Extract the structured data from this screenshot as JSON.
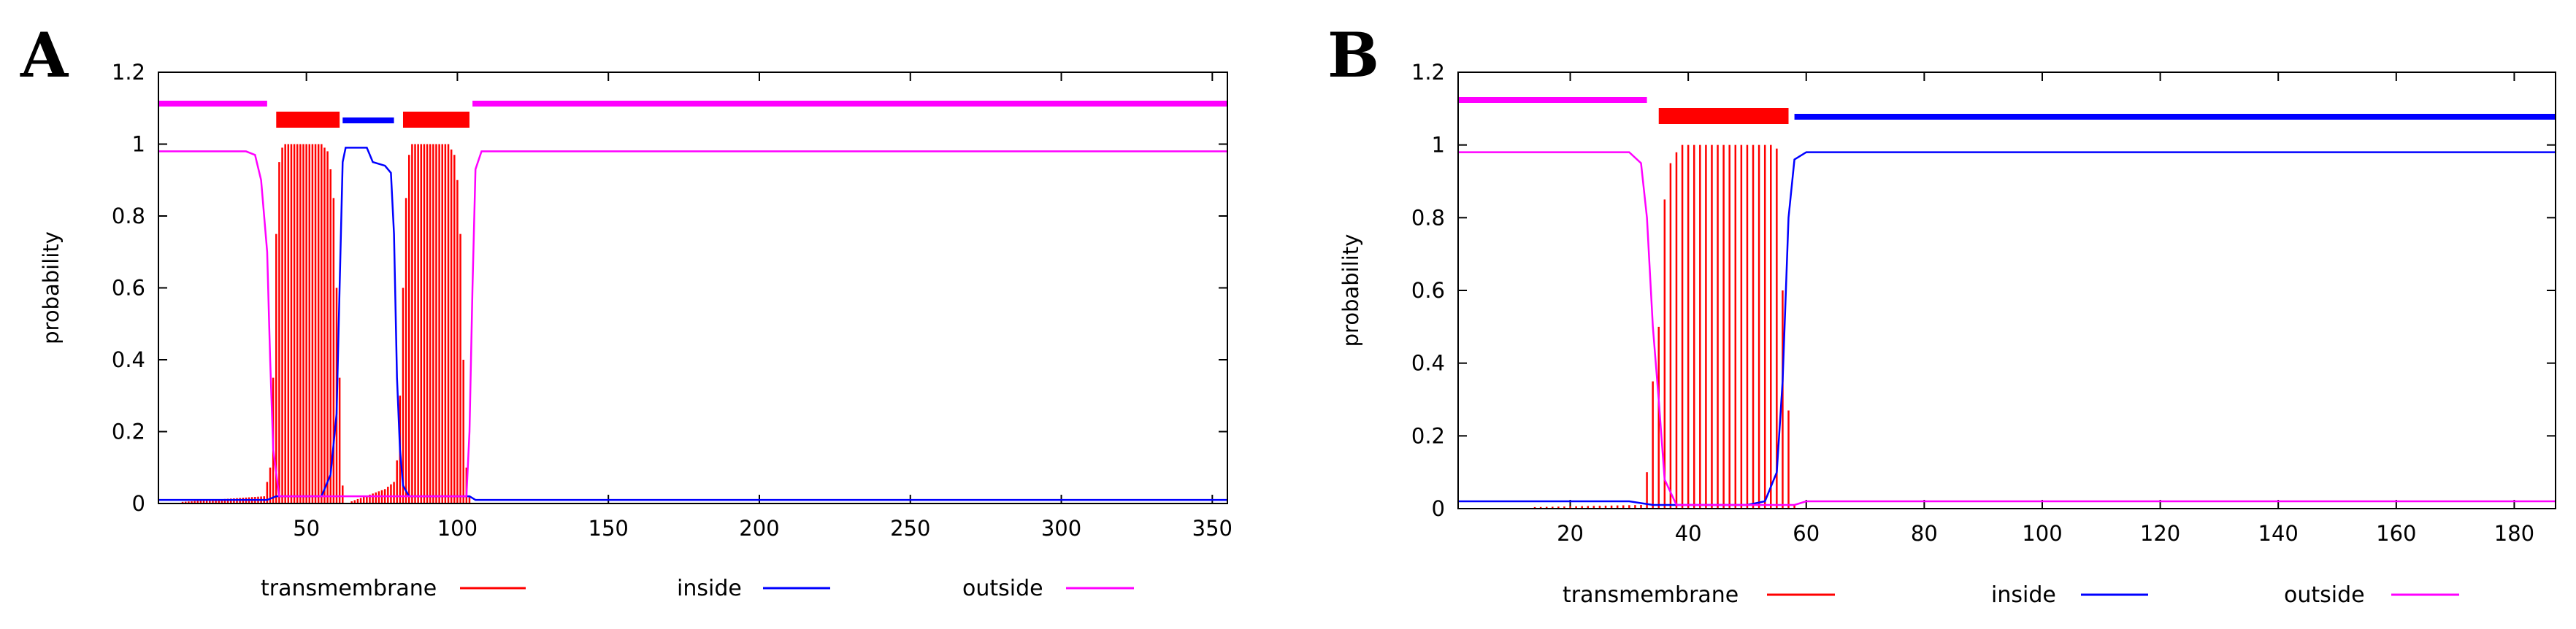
{
  "chart_data": [
    {
      "type": "line",
      "panel_label": "A",
      "ylabel": "probability",
      "xlim": [
        1,
        355
      ],
      "ylim": [
        0,
        1.2
      ],
      "x_ticks": [
        "50",
        "100",
        "150",
        "200",
        "250",
        "300",
        "350"
      ],
      "y_ticks": [
        "0",
        "0.2",
        "0.4",
        "0.6",
        "0.8",
        "1",
        "1.2"
      ],
      "legend": {
        "position": "bottom",
        "entries": [
          "transmembrane",
          "inside",
          "outside"
        ]
      },
      "colors": {
        "transmembrane": "#ff0000",
        "inside": "#0000ff",
        "outside": "#ff00ff"
      },
      "topology_bars": [
        {
          "region": "outside",
          "start": 1,
          "end": 37
        },
        {
          "region": "transmembrane",
          "start": 40,
          "end": 61
        },
        {
          "region": "inside",
          "start": 62,
          "end": 79
        },
        {
          "region": "transmembrane",
          "start": 82,
          "end": 104
        },
        {
          "region": "outside",
          "start": 105,
          "end": 355
        }
      ],
      "series": [
        {
          "name": "transmembrane",
          "style": "impulses",
          "points": [
            [
              1,
              0
            ],
            [
              36,
              0.02
            ],
            [
              37,
              0.06
            ],
            [
              38,
              0.1
            ],
            [
              39,
              0.35
            ],
            [
              40,
              0.75
            ],
            [
              41,
              0.95
            ],
            [
              42,
              0.99
            ],
            [
              43,
              1
            ],
            [
              55,
              1
            ],
            [
              57,
              0.98
            ],
            [
              58,
              0.93
            ],
            [
              59,
              0.85
            ],
            [
              60,
              0.6
            ],
            [
              61,
              0.35
            ],
            [
              62,
              0.05
            ],
            [
              63,
              0
            ],
            [
              76,
              0.04
            ],
            [
              79,
              0.06
            ],
            [
              80,
              0.12
            ],
            [
              81,
              0.3
            ],
            [
              82,
              0.6
            ],
            [
              83,
              0.85
            ],
            [
              84,
              0.97
            ],
            [
              85,
              1
            ],
            [
              97,
              1
            ],
            [
              99,
              0.97
            ],
            [
              100,
              0.9
            ],
            [
              101,
              0.75
            ],
            [
              102,
              0.4
            ],
            [
              103,
              0.1
            ],
            [
              104,
              0.02
            ],
            [
              105,
              0
            ],
            [
              355,
              0
            ]
          ]
        },
        {
          "name": "inside",
          "style": "line",
          "points": [
            [
              1,
              0.01
            ],
            [
              37,
              0.01
            ],
            [
              40,
              0.02
            ],
            [
              55,
              0.02
            ],
            [
              58,
              0.08
            ],
            [
              60,
              0.25
            ],
            [
              61,
              0.6
            ],
            [
              62,
              0.95
            ],
            [
              63,
              0.99
            ],
            [
              70,
              0.99
            ],
            [
              72,
              0.95
            ],
            [
              76,
              0.94
            ],
            [
              78,
              0.92
            ],
            [
              79,
              0.75
            ],
            [
              80,
              0.35
            ],
            [
              81,
              0.15
            ],
            [
              82,
              0.05
            ],
            [
              84,
              0.02
            ],
            [
              104,
              0.02
            ],
            [
              106,
              0.01
            ],
            [
              355,
              0.01
            ]
          ]
        },
        {
          "name": "outside",
          "style": "line",
          "points": [
            [
              1,
              0.98
            ],
            [
              30,
              0.98
            ],
            [
              33,
              0.97
            ],
            [
              35,
              0.9
            ],
            [
              37,
              0.7
            ],
            [
              38,
              0.4
            ],
            [
              39,
              0.15
            ],
            [
              41,
              0.02
            ],
            [
              103,
              0.02
            ],
            [
              104,
              0.2
            ],
            [
              105,
              0.6
            ],
            [
              106,
              0.93
            ],
            [
              108,
              0.98
            ],
            [
              355,
              0.98
            ]
          ]
        }
      ]
    },
    {
      "type": "line",
      "panel_label": "B",
      "ylabel": "probability",
      "xlim": [
        1,
        187
      ],
      "ylim": [
        0,
        1.2
      ],
      "x_ticks": [
        "20",
        "40",
        "60",
        "80",
        "100",
        "120",
        "140",
        "160",
        "180"
      ],
      "y_ticks": [
        "0",
        "0.2",
        "0.4",
        "0.6",
        "0.8",
        "1",
        "1.2"
      ],
      "legend": {
        "position": "bottom",
        "entries": [
          "transmembrane",
          "inside",
          "outside"
        ]
      },
      "colors": {
        "transmembrane": "#ff0000",
        "inside": "#0000ff",
        "outside": "#ff00ff"
      },
      "topology_bars": [
        {
          "region": "outside",
          "start": 1,
          "end": 33
        },
        {
          "region": "transmembrane",
          "start": 35,
          "end": 57
        },
        {
          "region": "inside",
          "start": 58,
          "end": 187
        }
      ],
      "series": [
        {
          "name": "transmembrane",
          "style": "impulses",
          "points": [
            [
              1,
              0
            ],
            [
              32,
              0.01
            ],
            [
              33,
              0.1
            ],
            [
              34,
              0.35
            ],
            [
              35,
              0.5
            ],
            [
              36,
              0.85
            ],
            [
              37,
              0.95
            ],
            [
              38,
              0.98
            ],
            [
              39,
              1
            ],
            [
              54,
              1
            ],
            [
              55,
              0.99
            ],
            [
              56,
              0.6
            ],
            [
              57,
              0.27
            ],
            [
              58,
              0.01
            ],
            [
              59,
              0
            ],
            [
              187,
              0
            ]
          ]
        },
        {
          "name": "inside",
          "style": "line",
          "points": [
            [
              1,
              0.02
            ],
            [
              30,
              0.02
            ],
            [
              34,
              0.01
            ],
            [
              50,
              0.01
            ],
            [
              53,
              0.02
            ],
            [
              55,
              0.1
            ],
            [
              56,
              0.35
            ],
            [
              57,
              0.8
            ],
            [
              58,
              0.96
            ],
            [
              60,
              0.98
            ],
            [
              187,
              0.98
            ]
          ]
        },
        {
          "name": "outside",
          "style": "line",
          "points": [
            [
              1,
              0.98
            ],
            [
              30,
              0.98
            ],
            [
              32,
              0.95
            ],
            [
              33,
              0.8
            ],
            [
              34,
              0.5
            ],
            [
              35,
              0.3
            ],
            [
              36,
              0.08
            ],
            [
              38,
              0.01
            ],
            [
              58,
              0.01
            ],
            [
              60,
              0.02
            ],
            [
              80,
              0.02
            ],
            [
              187,
              0.02
            ]
          ]
        }
      ]
    }
  ]
}
